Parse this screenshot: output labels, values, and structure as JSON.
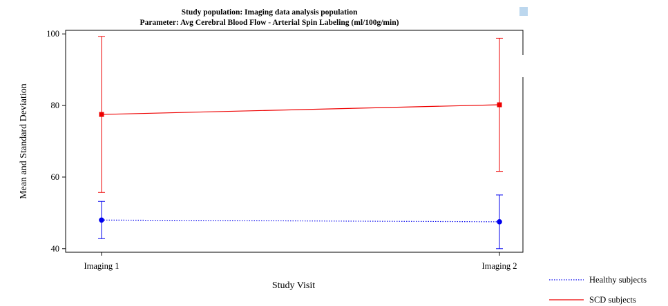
{
  "chart_data": {
    "type": "line",
    "title": "Study population: Imaging data analysis population",
    "subtitle": "Parameter: Avg Cerebral Blood Flow - Arterial Spin Labeling (ml/100g/min)",
    "xlabel": "Study Visit",
    "ylabel": "Mean and Standard Deviation",
    "categories": [
      "Imaging 1",
      "Imaging 2"
    ],
    "ylim": [
      39,
      101
    ],
    "yticks": [
      40,
      60,
      80,
      100
    ],
    "grid": false,
    "legend_position": "bottom-right",
    "series": [
      {
        "name": "Healthy subjects",
        "color": "#0000ee",
        "line_style": "dotted",
        "marker": "circle",
        "mean": [
          48.0,
          47.5
        ],
        "sd_low": [
          42.8,
          40.0
        ],
        "sd_high": [
          53.2,
          55.0
        ]
      },
      {
        "name": "SCD subjects",
        "color": "#ee0000",
        "line_style": "solid",
        "marker": "square",
        "mean": [
          77.5,
          80.2
        ],
        "sd_low": [
          55.7,
          61.6
        ],
        "sd_high": [
          99.3,
          98.8
        ]
      }
    ]
  }
}
